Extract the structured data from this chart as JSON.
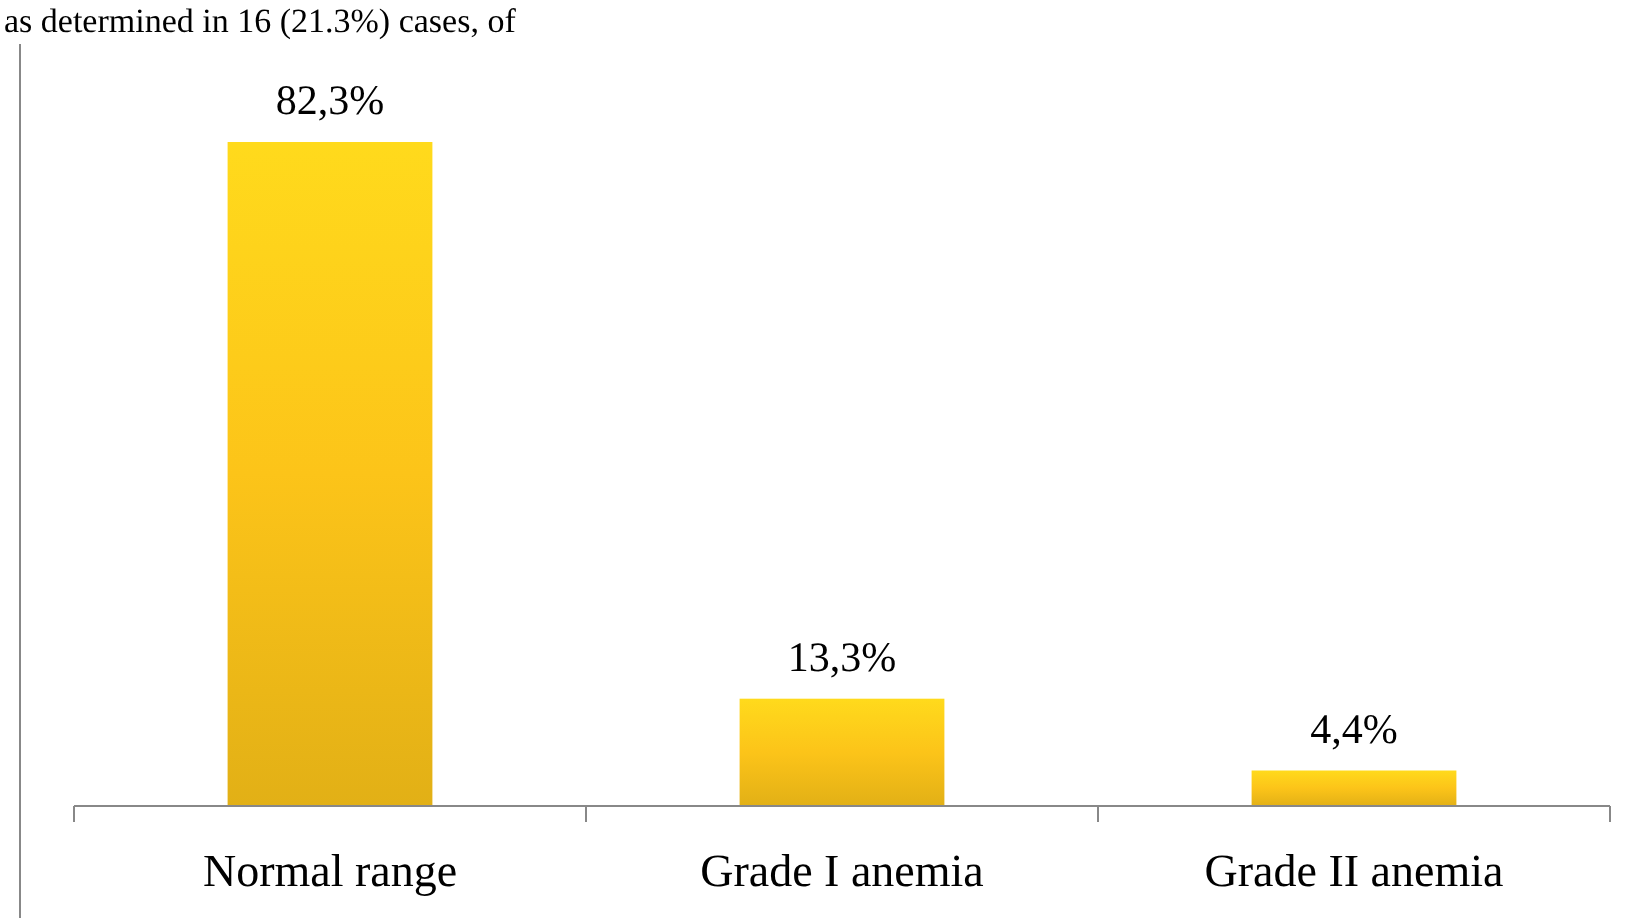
{
  "chart_data": {
    "type": "bar",
    "annotations": [
      "as determined in 16 (21.3%) cases, of"
    ],
    "categories": [
      "Normal range",
      "Grade I anemia",
      "Grade II anemia"
    ],
    "values": [
      82.3,
      13.3,
      4.4
    ],
    "value_labels": [
      "82,3%",
      "13,3%",
      "4,4%"
    ],
    "color": "#fcc419"
  }
}
